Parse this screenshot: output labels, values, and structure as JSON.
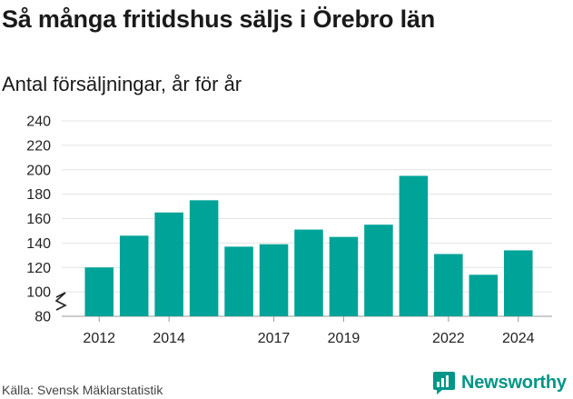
{
  "title": "Så många fritidshus säljs i Örebro län",
  "subtitle": "Antal försäljningar, år för år",
  "source": "Källa: Svensk Mäklarstatistik",
  "brand": {
    "name": "Newsworthy",
    "icon": "newsworthy-logo-icon",
    "color": "#009688"
  },
  "chart_data": {
    "type": "bar",
    "categories": [
      "2012",
      "2013",
      "2014",
      "2015",
      "2016",
      "2017",
      "2018",
      "2019",
      "2020",
      "2021",
      "2022",
      "2023",
      "2024"
    ],
    "values": [
      120,
      146,
      165,
      175,
      137,
      139,
      151,
      145,
      155,
      195,
      131,
      114,
      134
    ],
    "x_tick_labels": [
      "2012",
      "2014",
      "2017",
      "2019",
      "2022",
      "2024"
    ],
    "y_ticks": [
      80,
      100,
      120,
      140,
      160,
      180,
      200,
      220,
      240
    ],
    "ylim": [
      80,
      240
    ],
    "axis_break": true,
    "grid": true,
    "bar_color": "#00a398"
  }
}
